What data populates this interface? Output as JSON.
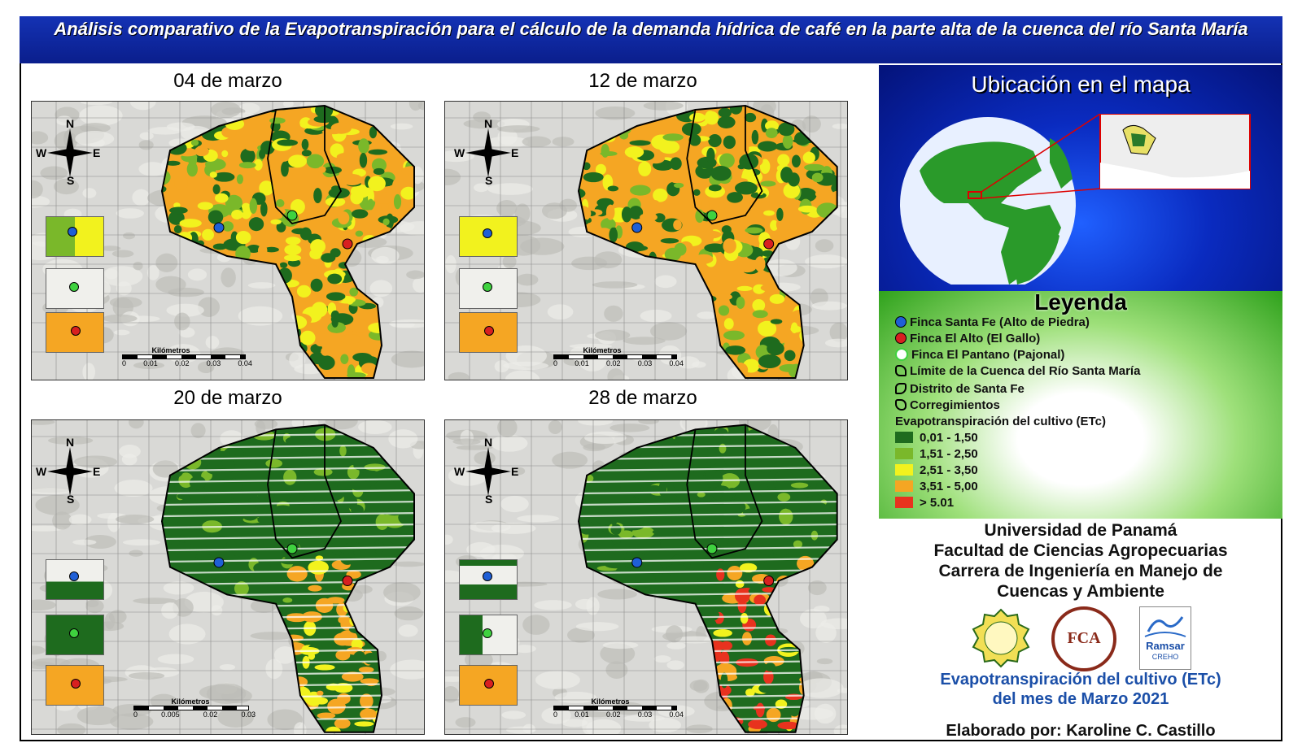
{
  "title": "Análisis comparativo de la Evapotranspiración para el cálculo de la demanda hídrica de café en la parte alta de la cuenca del río Santa María",
  "maps": [
    {
      "label": "04 de marzo",
      "scale_label": "Kilómetros",
      "ticks": [
        "0",
        "0.01",
        "0.02",
        "0.03",
        "0.04"
      ]
    },
    {
      "label": "12 de marzo",
      "scale_label": "Kilómetros",
      "ticks": [
        "0",
        "0.01",
        "0.02",
        "0.03",
        "0.04"
      ]
    },
    {
      "label": "20 de marzo",
      "scale_label": "Kilómetros",
      "ticks": [
        "0",
        "0.005",
        "0.02",
        "0.03"
      ]
    },
    {
      "label": "28 de marzo",
      "scale_label": "Kilómetros",
      "ticks": [
        "0",
        "0.01",
        "0.02",
        "0.03",
        "0.04"
      ]
    }
  ],
  "compass": {
    "n": "N",
    "s": "S",
    "e": "E",
    "w": "W"
  },
  "location_title": "Ubicación en el mapa",
  "legend": {
    "title": "Leyenda",
    "points": [
      {
        "label": "Finca Santa Fe (Alto de Piedra)",
        "color": "#1f5fd6"
      },
      {
        "label": "Finca El Alto (El Gallo)",
        "color": "#d82020"
      },
      {
        "label": "Finca El Pantano (Pajonal)",
        "color": "#3fd23f"
      }
    ],
    "boundaries": [
      "Límite de la Cuenca del Río Santa María",
      "Distrito de Santa Fe",
      "Corregimientos"
    ],
    "etc_title": "Evapotranspiración del cultivo (ETc)",
    "classes": [
      {
        "label": "0,01 - 1,50",
        "color": "#1e6b1e"
      },
      {
        "label": "1,51 - 2,50",
        "color": "#7ab82a"
      },
      {
        "label": "2,51 - 3,50",
        "color": "#f2f21e"
      },
      {
        "label": "3,51 - 5,00",
        "color": "#f5a623"
      },
      {
        "label": "> 5.01",
        "color": "#e8321e"
      }
    ]
  },
  "institution": {
    "line1": "Universidad de Panamá",
    "line2": "Facultad de Ciencias Agropecuarias",
    "line3": "Carrera de Ingeniería en Manejo de",
    "line4": "Cuencas y Ambiente"
  },
  "logos": {
    "up": "UNIVERSIDAD DE PANAMÁ",
    "fca": "FCA",
    "ramsar": "Ramsar",
    "creho": "CREHO"
  },
  "caption_line1": "Evapotranspiración del cultivo (ETc)",
  "caption_line2": "del mes de Marzo 2021",
  "author": "Elaborado por: Karoline C. Castillo"
}
